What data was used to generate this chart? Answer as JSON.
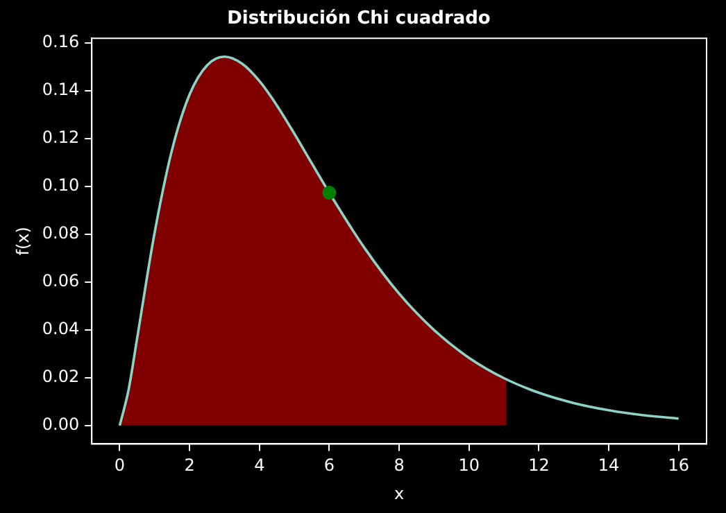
{
  "chart_data": {
    "type": "line",
    "title": "Distribución Chi cuadrado",
    "xlabel": "x",
    "ylabel": "f(x)",
    "xlim": [
      -0.8,
      16.8
    ],
    "ylim": [
      -0.0077,
      0.1619
    ],
    "xticks": [
      0,
      2,
      4,
      6,
      8,
      10,
      12,
      14,
      16
    ],
    "yticks": [
      {
        "value": 0,
        "label": "0.00"
      },
      {
        "value": 0.02,
        "label": "0.02"
      },
      {
        "value": 0.04,
        "label": "0.04"
      },
      {
        "value": 0.06,
        "label": "0.06"
      },
      {
        "value": 0.08,
        "label": "0.08"
      },
      {
        "value": 0.1,
        "label": "0.10"
      },
      {
        "value": 0.12,
        "label": "0.12"
      },
      {
        "value": 0.14,
        "label": "0.14"
      },
      {
        "value": 0.16,
        "label": "0.16"
      }
    ],
    "grid": false,
    "legend": false,
    "series": [
      {
        "type": "area",
        "color": "#800000",
        "x": [
          0,
          0.25,
          0.5,
          1,
          1.5,
          2,
          2.5,
          3,
          3.5,
          4,
          4.5,
          5,
          5.5,
          6,
          7,
          8,
          9,
          10,
          11,
          11.07
        ],
        "values": [
          0,
          0.0147,
          0.0366,
          0.0807,
          0.1154,
          0.1384,
          0.1506,
          0.1542,
          0.1513,
          0.144,
          0.1338,
          0.122,
          0.1096,
          0.0973,
          0.0744,
          0.0551,
          0.0399,
          0.0283,
          0.0198,
          0.0193
        ]
      },
      {
        "type": "line",
        "color": "#8dd3c7",
        "x": [
          0,
          0.25,
          0.5,
          1,
          1.5,
          2,
          2.5,
          3,
          3.5,
          4,
          4.5,
          5,
          5.5,
          6,
          7,
          8,
          9,
          10,
          11,
          12,
          13,
          14,
          15,
          16
        ],
        "values": [
          0,
          0.0147,
          0.0366,
          0.0807,
          0.1154,
          0.1384,
          0.1506,
          0.1542,
          0.1513,
          0.144,
          0.1338,
          0.122,
          0.1096,
          0.0973,
          0.0744,
          0.0551,
          0.0399,
          0.0283,
          0.0198,
          0.0137,
          0.0094,
          0.0064,
          0.0043,
          0.0029
        ]
      },
      {
        "type": "scatter",
        "color": "#008000",
        "x": [
          6
        ],
        "values": [
          0.0973
        ]
      }
    ]
  }
}
